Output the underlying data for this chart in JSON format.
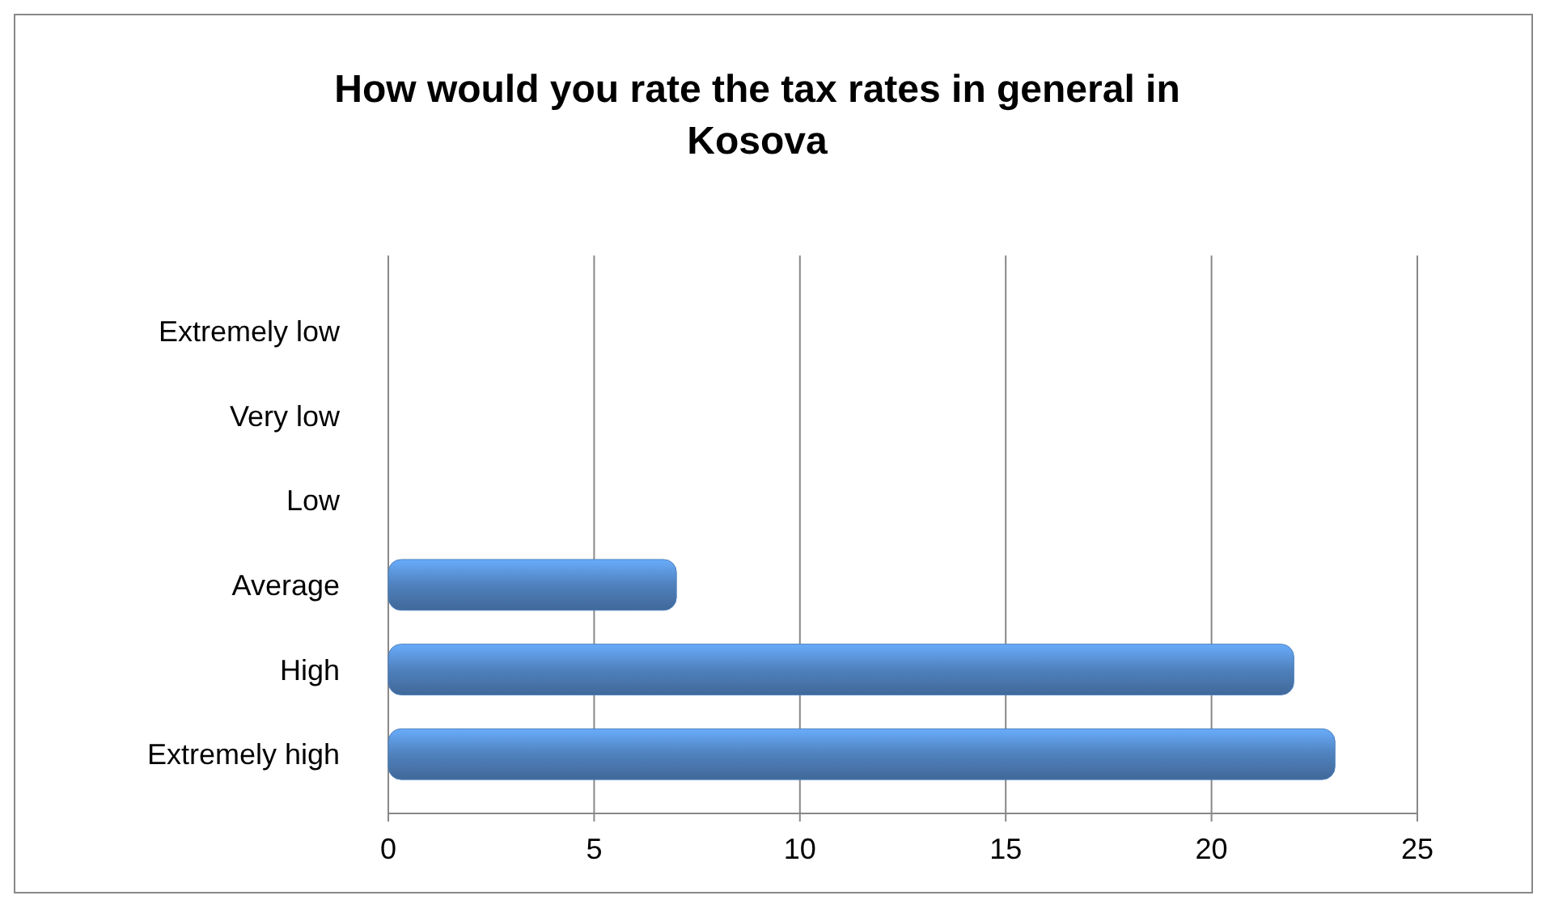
{
  "chart_data": {
    "type": "bar",
    "orientation": "horizontal",
    "title": "How would you rate the tax rates in general in Kosova",
    "categories": [
      "Extremely low",
      "Very low",
      "Low",
      "Average",
      "High",
      "Extremely high"
    ],
    "values": [
      0,
      0,
      0,
      7,
      22,
      23
    ],
    "color": "#4f81bd",
    "xlim": [
      0,
      25
    ],
    "xticks": [
      0,
      5,
      10,
      15,
      20,
      25
    ],
    "grid": "x"
  }
}
